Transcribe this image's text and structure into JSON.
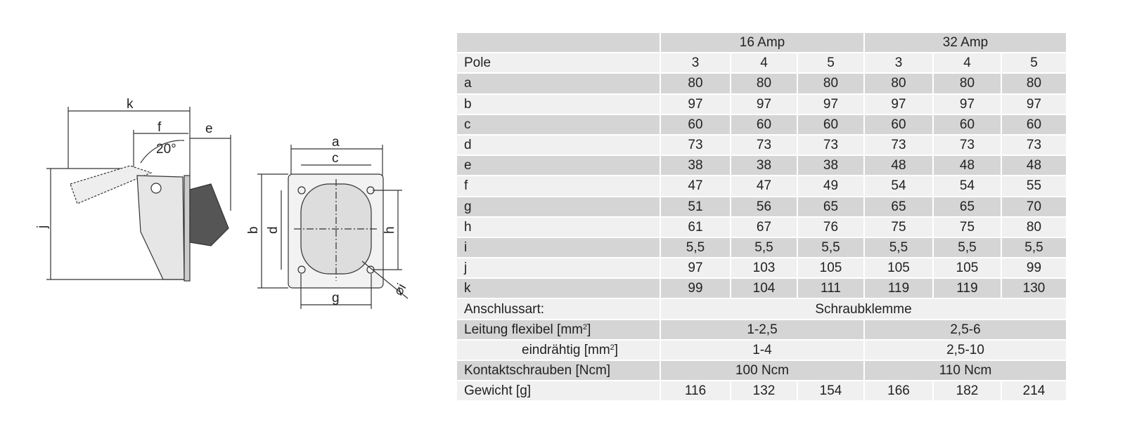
{
  "drawing": {
    "labels": {
      "k": "k",
      "f": "f",
      "e": "e",
      "angle": "20°",
      "j": "j",
      "a": "a",
      "c": "c",
      "b": "b",
      "d": "d",
      "h": "h",
      "g": "g",
      "i": "⌀i"
    }
  },
  "table": {
    "groups": [
      "16 Amp",
      "32 Amp"
    ],
    "pole_label": "Pole",
    "poles": [
      "3",
      "4",
      "5",
      "3",
      "4",
      "5"
    ],
    "dimensions": [
      {
        "label": "a",
        "values": [
          "80",
          "80",
          "80",
          "80",
          "80",
          "80"
        ]
      },
      {
        "label": "b",
        "values": [
          "97",
          "97",
          "97",
          "97",
          "97",
          "97"
        ]
      },
      {
        "label": "c",
        "values": [
          "60",
          "60",
          "60",
          "60",
          "60",
          "60"
        ]
      },
      {
        "label": "d",
        "values": [
          "73",
          "73",
          "73",
          "73",
          "73",
          "73"
        ]
      },
      {
        "label": "e",
        "values": [
          "38",
          "38",
          "38",
          "48",
          "48",
          "48"
        ]
      },
      {
        "label": "f",
        "values": [
          "47",
          "47",
          "49",
          "54",
          "54",
          "55"
        ]
      },
      {
        "label": "g",
        "values": [
          "51",
          "56",
          "65",
          "65",
          "65",
          "70"
        ]
      },
      {
        "label": "h",
        "values": [
          "61",
          "67",
          "76",
          "75",
          "75",
          "80"
        ]
      },
      {
        "label": "i",
        "values": [
          "5,5",
          "5,5",
          "5,5",
          "5,5",
          "5,5",
          "5,5"
        ]
      },
      {
        "label": "j",
        "values": [
          "97",
          "103",
          "105",
          "105",
          "105",
          "99"
        ]
      },
      {
        "label": "k",
        "values": [
          "99",
          "104",
          "111",
          "119",
          "119",
          "130"
        ]
      }
    ],
    "anschluss": {
      "label": "Anschlussart:",
      "value": "Schraubklemme"
    },
    "leitung_flexibel": {
      "label": "Leitung  flexibel [mm",
      "sup": "2",
      "close": "]",
      "values": [
        "1-2,5",
        "2,5-6"
      ]
    },
    "eindraehtig": {
      "label": "eindrähtig [mm",
      "sup": "2",
      "close": "]",
      "values": [
        "1-4",
        "2,5-10"
      ]
    },
    "kontaktschrauben": {
      "label": "Kontaktschrauben [Ncm]",
      "values": [
        "100 Ncm",
        "110 Ncm"
      ]
    },
    "gewicht": {
      "label": "Gewicht [g]",
      "values": [
        "116",
        "132",
        "154",
        "166",
        "182",
        "214"
      ]
    }
  }
}
